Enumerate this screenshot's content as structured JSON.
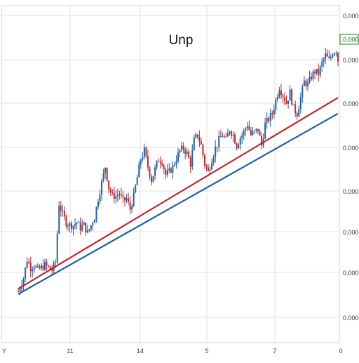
{
  "chart_data": {
    "type": "candlestick",
    "title": "Unp",
    "x_tick_labels": [
      "Y",
      "11",
      "14",
      "5",
      "7",
      "0"
    ],
    "y_tick_labels": [
      "0.000",
      "0.000",
      "0.000",
      "0.000",
      "0.000",
      "0.000",
      "0.000",
      "0.000"
    ],
    "last_price_label": "0.000",
    "grid": true,
    "colors": {
      "up": "#1f5fa8",
      "down": "#c0282d",
      "trendline_upper": "#c0282d",
      "trendline_lower": "#1f5fa8",
      "price_tag_border": "#2e9b2e",
      "grid": "#e2e2e2"
    },
    "trendlines": [
      {
        "color": "upper",
        "from": [
          0,
          0.06
        ],
        "to": [
          180,
          0.78
        ]
      },
      {
        "color": "lower",
        "from": [
          0,
          0.04
        ],
        "to": [
          180,
          0.72
        ]
      }
    ],
    "close_path": [
      [
        0,
        0.05
      ],
      [
        3,
        0.1
      ],
      [
        5,
        0.17
      ],
      [
        7,
        0.14
      ],
      [
        9,
        0.15
      ],
      [
        11,
        0.13
      ],
      [
        13,
        0.14
      ],
      [
        15,
        0.15
      ],
      [
        17,
        0.14
      ],
      [
        19,
        0.13
      ],
      [
        21,
        0.16
      ],
      [
        23,
        0.38
      ],
      [
        25,
        0.34
      ],
      [
        27,
        0.31
      ],
      [
        29,
        0.3
      ],
      [
        31,
        0.3
      ],
      [
        33,
        0.31
      ],
      [
        35,
        0.29
      ],
      [
        37,
        0.3
      ],
      [
        39,
        0.27
      ],
      [
        41,
        0.3
      ],
      [
        43,
        0.33
      ],
      [
        45,
        0.4
      ],
      [
        47,
        0.46
      ],
      [
        49,
        0.52
      ],
      [
        51,
        0.44
      ],
      [
        53,
        0.41
      ],
      [
        55,
        0.41
      ],
      [
        57,
        0.42
      ],
      [
        59,
        0.39
      ],
      [
        61,
        0.4
      ],
      [
        63,
        0.36
      ],
      [
        65,
        0.41
      ],
      [
        67,
        0.48
      ],
      [
        69,
        0.55
      ],
      [
        71,
        0.58
      ],
      [
        73,
        0.52
      ],
      [
        75,
        0.47
      ],
      [
        77,
        0.51
      ],
      [
        79,
        0.55
      ],
      [
        81,
        0.54
      ],
      [
        83,
        0.49
      ],
      [
        85,
        0.5
      ],
      [
        87,
        0.52
      ],
      [
        89,
        0.55
      ],
      [
        91,
        0.58
      ],
      [
        93,
        0.59
      ],
      [
        95,
        0.57
      ],
      [
        97,
        0.53
      ],
      [
        99,
        0.62
      ],
      [
        101,
        0.64
      ],
      [
        103,
        0.6
      ],
      [
        105,
        0.53
      ],
      [
        107,
        0.5
      ],
      [
        109,
        0.55
      ],
      [
        111,
        0.59
      ],
      [
        113,
        0.62
      ],
      [
        115,
        0.64
      ],
      [
        117,
        0.62
      ],
      [
        119,
        0.66
      ],
      [
        121,
        0.64
      ],
      [
        123,
        0.6
      ],
      [
        125,
        0.63
      ],
      [
        127,
        0.65
      ],
      [
        129,
        0.68
      ],
      [
        131,
        0.64
      ],
      [
        133,
        0.65
      ],
      [
        135,
        0.66
      ],
      [
        137,
        0.6
      ],
      [
        139,
        0.68
      ],
      [
        141,
        0.7
      ],
      [
        143,
        0.72
      ],
      [
        145,
        0.77
      ],
      [
        147,
        0.82
      ],
      [
        149,
        0.79
      ],
      [
        151,
        0.76
      ],
      [
        153,
        0.8
      ],
      [
        155,
        0.74
      ],
      [
        157,
        0.72
      ],
      [
        159,
        0.78
      ],
      [
        161,
        0.84
      ],
      [
        163,
        0.83
      ],
      [
        165,
        0.86
      ],
      [
        167,
        0.88
      ],
      [
        169,
        0.87
      ],
      [
        171,
        0.91
      ],
      [
        173,
        0.94
      ],
      [
        175,
        0.92
      ],
      [
        177,
        0.95
      ],
      [
        179,
        0.96
      ],
      [
        180,
        0.92
      ]
    ]
  }
}
